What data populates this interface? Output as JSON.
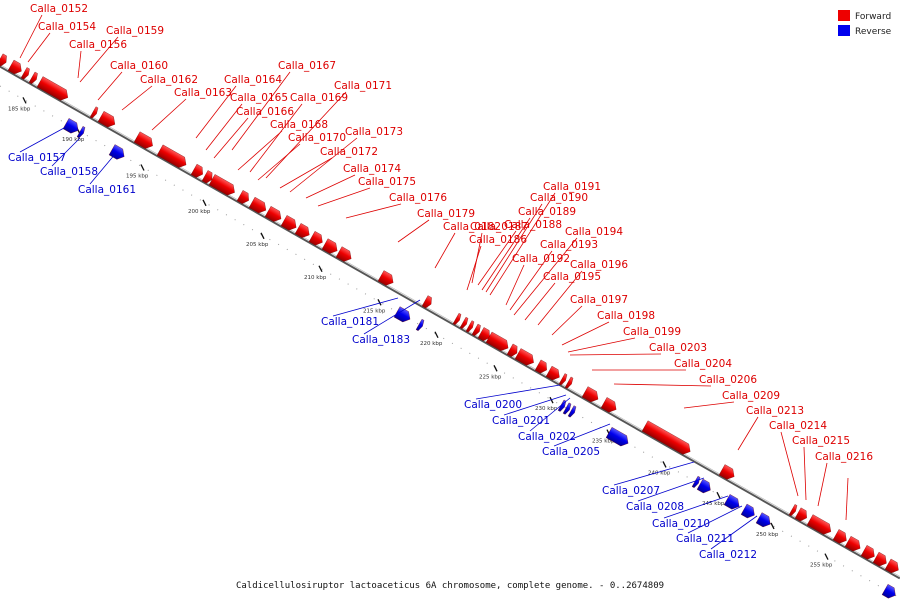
{
  "caption": "Caldicellulosiruptor lactoaceticus 6A chromosome, complete genome. - 0..2674809",
  "legend": [
    {
      "label": "Forward",
      "color": "#ee0000"
    },
    {
      "label": "Reverse",
      "color": "#0000ee"
    }
  ],
  "ticks": [
    "185 kbp",
    "190 kbp",
    "195 kbp",
    "200 kbp",
    "205 kbp",
    "210 kbp",
    "215 kbp",
    "220 kbp",
    "225 kbp",
    "230 kbp",
    "235 kbp",
    "240 kbp",
    "245 kbp",
    "250 kbp",
    "255 kbp"
  ],
  "forward_labels": [
    "Calla_0152",
    "Calla_0154",
    "Calla_0156",
    "Calla_0159",
    "Calla_0160",
    "Calla_0162",
    "Calla_0163",
    "Calla_0164",
    "Calla_0165",
    "Calla_0166",
    "Calla_0167",
    "Calla_0168",
    "Calla_0169",
    "Calla_0170",
    "Calla_0171",
    "Calla_0172",
    "Calla_0173",
    "Calla_0174",
    "Calla_0175",
    "Calla_0176",
    "Calla_0179",
    "Calla_0182",
    "Calla_0186",
    "Calla_0187",
    "Calla_0188",
    "Calla_0189",
    "Calla_0190",
    "Calla_0191",
    "Calla_0192",
    "Calla_0193",
    "Calla_0194",
    "Calla_0195",
    "Calla_0196",
    "Calla_0197",
    "Calla_0198",
    "Calla_0199",
    "Calla_0203",
    "Calla_0204",
    "Calla_0206",
    "Calla_0209",
    "Calla_0213",
    "Calla_0214",
    "Calla_0215",
    "Calla_0216"
  ],
  "reverse_labels": [
    "Calla_0157",
    "Calla_0158",
    "Calla_0161",
    "Calla_0181",
    "Calla_0183",
    "Calla_0200",
    "Calla_0201",
    "Calla_0202",
    "Calla_0205",
    "Calla_0207",
    "Calla_0208",
    "Calla_0210",
    "Calla_0211",
    "Calla_0212"
  ]
}
